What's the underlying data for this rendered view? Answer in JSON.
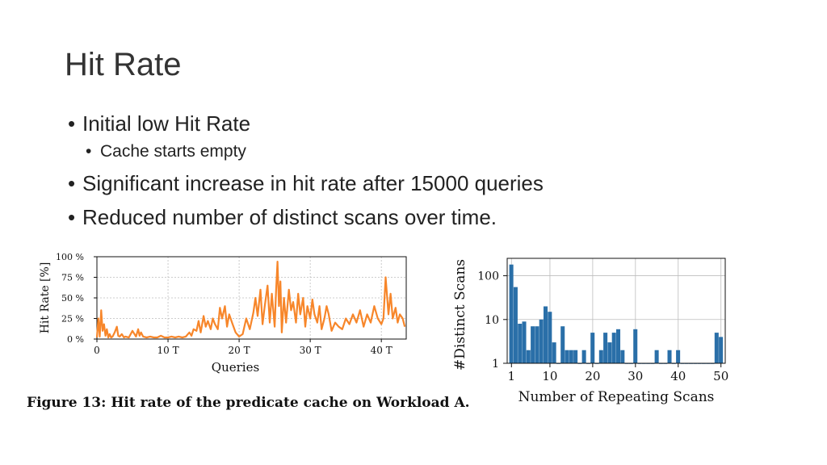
{
  "slide": {
    "title": "Hit Rate",
    "bullets": [
      {
        "level": 1,
        "text": "Initial low Hit Rate"
      },
      {
        "level": 2,
        "text": "Cache starts empty"
      },
      {
        "level": 1,
        "text": "Significant increase in hit rate after 15000 queries"
      },
      {
        "level": 1,
        "text": "Reduced number of distinct scans over time."
      }
    ]
  },
  "figure_caption": "Figure 13: Hit rate of the predicate cache on Workload A.",
  "colors": {
    "line": "#f7862a",
    "bar": "#2a6fa8",
    "grid": "#bdbdbd"
  },
  "chart_data": [
    {
      "type": "line",
      "title": "",
      "xlabel": "Queries",
      "ylabel": "Hit Rate [%]",
      "xlim": [
        0,
        43.5
      ],
      "ylim": [
        0,
        100
      ],
      "x_ticks": [
        0,
        10,
        20,
        30,
        40
      ],
      "x_tick_labels": [
        "0",
        "10 T",
        "20 T",
        "30 T",
        "40 T"
      ],
      "y_ticks": [
        0,
        25,
        50,
        75,
        100
      ],
      "y_tick_labels": [
        "0 %",
        "25 %",
        "50 %",
        "75 %",
        "100 %"
      ],
      "grid": true,
      "series": [
        {
          "x": [
            0,
            0.2,
            0.4,
            0.6,
            0.8,
            1.0,
            1.2,
            1.4,
            1.6,
            1.8,
            2.0,
            2.2,
            2.5,
            2.8,
            3.0,
            3.2,
            3.5,
            3.8,
            4.0,
            4.5,
            5.0,
            5.5,
            5.8,
            6.0,
            6.2,
            6.5,
            7.0,
            7.5,
            8.0,
            8.5,
            9.0,
            9.5,
            10.0,
            10.5,
            11.0,
            11.5,
            12.0,
            12.5,
            13.0,
            13.3,
            13.6,
            14.0,
            14.3,
            14.6,
            15.0,
            15.3,
            15.6,
            16.0,
            16.3,
            16.6,
            17.0,
            17.3,
            17.6,
            18.0,
            18.3,
            18.6,
            19.0,
            19.5,
            20.0,
            20.5,
            21.0,
            21.5,
            22.0,
            22.3,
            22.6,
            23.0,
            23.3,
            23.6,
            24.0,
            24.3,
            24.6,
            25.0,
            25.2,
            25.4,
            25.6,
            25.8,
            26.0,
            26.3,
            26.6,
            27.0,
            27.3,
            27.6,
            28.0,
            28.3,
            28.6,
            29.0,
            29.3,
            29.6,
            30.0,
            30.3,
            30.6,
            31.0,
            31.3,
            31.6,
            32.0,
            32.3,
            32.6,
            33.0,
            33.5,
            34.0,
            34.5,
            35.0,
            35.5,
            36.0,
            36.5,
            37.0,
            37.5,
            38.0,
            38.5,
            39.0,
            39.5,
            40.0,
            40.3,
            40.6,
            41.0,
            41.3,
            41.6,
            42.0,
            42.3,
            42.6,
            43.0,
            43.3
          ],
          "y": [
            2,
            25,
            3,
            35,
            10,
            18,
            4,
            12,
            2,
            6,
            2,
            3,
            8,
            15,
            4,
            3,
            6,
            2,
            3,
            2,
            10,
            3,
            12,
            4,
            8,
            3,
            2,
            3,
            2,
            2,
            4,
            2,
            2,
            3,
            2,
            3,
            2,
            3,
            8,
            4,
            12,
            10,
            22,
            8,
            28,
            15,
            22,
            12,
            25,
            18,
            12,
            38,
            25,
            40,
            15,
            30,
            20,
            8,
            3,
            6,
            25,
            12,
            32,
            50,
            28,
            60,
            18,
            40,
            65,
            20,
            55,
            15,
            60,
            94,
            40,
            70,
            8,
            50,
            20,
            60,
            35,
            45,
            20,
            55,
            30,
            50,
            15,
            40,
            25,
            48,
            30,
            20,
            40,
            12,
            25,
            40,
            30,
            10,
            20,
            15,
            12,
            25,
            18,
            30,
            20,
            35,
            15,
            30,
            20,
            40,
            25,
            18,
            25,
            75,
            30,
            55,
            25,
            38,
            20,
            30,
            25,
            15
          ]
        }
      ]
    },
    {
      "type": "bar",
      "title": "",
      "xlabel": "Number of Repeating Scans",
      "ylabel": "#Distinct Scans",
      "y_scale": "log",
      "xlim": [
        0,
        51
      ],
      "ylim": [
        1,
        250
      ],
      "x_ticks": [
        1,
        10,
        20,
        30,
        40,
        50
      ],
      "x_tick_labels": [
        "1",
        "10",
        "20",
        "30",
        "40",
        "50"
      ],
      "y_ticks": [
        1,
        10,
        100
      ],
      "y_tick_labels": [
        "1",
        "10",
        "100"
      ],
      "grid": true,
      "x": [
        1,
        2,
        3,
        4,
        5,
        6,
        7,
        8,
        9,
        10,
        11,
        12,
        13,
        14,
        15,
        16,
        17,
        18,
        19,
        20,
        21,
        22,
        23,
        24,
        25,
        26,
        27,
        28,
        29,
        30,
        31,
        32,
        33,
        34,
        35,
        36,
        37,
        38,
        39,
        40,
        41,
        42,
        43,
        44,
        45,
        46,
        47,
        48,
        49,
        50
      ],
      "values": [
        180,
        55,
        8,
        9,
        2,
        7,
        7,
        10,
        20,
        15,
        3,
        1,
        7,
        2,
        2,
        2,
        1,
        2,
        1,
        5,
        1,
        2,
        5,
        3,
        5,
        6,
        2,
        1,
        1,
        6,
        1,
        1,
        1,
        1,
        2,
        1,
        1,
        2,
        1,
        2,
        1,
        1,
        1,
        1,
        1,
        1,
        1,
        1,
        5,
        4
      ]
    }
  ]
}
